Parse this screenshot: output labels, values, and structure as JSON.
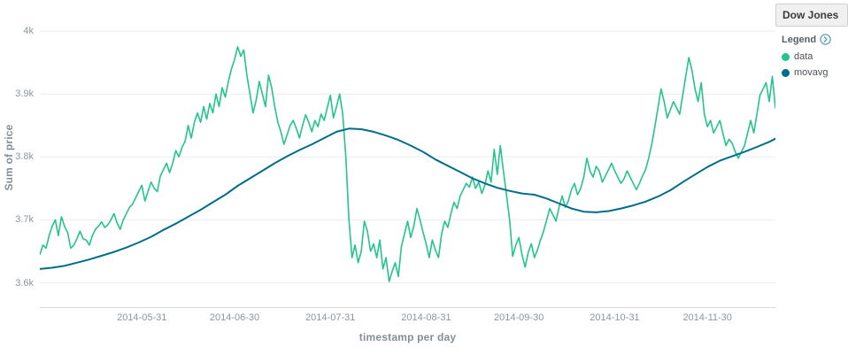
{
  "panel": {
    "title": "Dow Jones"
  },
  "legend": {
    "label": "Legend",
    "toggle_icon": "chevron-circle-right",
    "items": [
      {
        "label": "data",
        "color": "#23c48e"
      },
      {
        "label": "movavg",
        "color": "#006e8a"
      }
    ]
  },
  "chart_data": {
    "type": "line",
    "title": "Dow Jones",
    "xlabel": "timestamp per day",
    "ylabel": "Sum of price",
    "y_unit": "k (thousands)",
    "grid": "horizontal",
    "legend_position": "right",
    "x_origin_date": "2014-04-28",
    "xlim": [
      0,
      238
    ],
    "ylim": [
      3.56,
      4.01
    ],
    "x_ticks": [
      {
        "offset": 33,
        "label": "2014-05-31"
      },
      {
        "offset": 63,
        "label": "2014-06-30"
      },
      {
        "offset": 94,
        "label": "2014-07-31"
      },
      {
        "offset": 125,
        "label": "2014-08-31"
      },
      {
        "offset": 155,
        "label": "2014-09-30"
      },
      {
        "offset": 186,
        "label": "2014-10-31"
      },
      {
        "offset": 216,
        "label": "2014-11-30"
      }
    ],
    "y_ticks": [
      {
        "value": 3.6,
        "label": "3.6k"
      },
      {
        "value": 3.7,
        "label": "3.7k"
      },
      {
        "value": 3.8,
        "label": "3.8k"
      },
      {
        "value": 3.9,
        "label": "3.9k"
      },
      {
        "value": 4.0,
        "label": "4k"
      }
    ],
    "series": [
      {
        "name": "data",
        "color": "#23c48e",
        "points": [
          [
            0,
            3.645
          ],
          [
            1,
            3.66
          ],
          [
            2,
            3.655
          ],
          [
            3,
            3.675
          ],
          [
            4,
            3.69
          ],
          [
            5,
            3.7
          ],
          [
            6,
            3.675
          ],
          [
            7,
            3.705
          ],
          [
            8,
            3.69
          ],
          [
            9,
            3.68
          ],
          [
            10,
            3.655
          ],
          [
            11,
            3.66
          ],
          [
            12,
            3.67
          ],
          [
            13,
            3.682
          ],
          [
            14,
            3.67
          ],
          [
            15,
            3.668
          ],
          [
            16,
            3.66
          ],
          [
            17,
            3.675
          ],
          [
            18,
            3.685
          ],
          [
            19,
            3.69
          ],
          [
            20,
            3.697
          ],
          [
            21,
            3.688
          ],
          [
            22,
            3.692
          ],
          [
            23,
            3.7
          ],
          [
            24,
            3.71
          ],
          [
            25,
            3.695
          ],
          [
            26,
            3.685
          ],
          [
            27,
            3.7
          ],
          [
            28,
            3.71
          ],
          [
            29,
            3.72
          ],
          [
            30,
            3.725
          ],
          [
            31,
            3.735
          ],
          [
            32,
            3.745
          ],
          [
            33,
            3.755
          ],
          [
            34,
            3.73
          ],
          [
            35,
            3.745
          ],
          [
            36,
            3.76
          ],
          [
            37,
            3.75
          ],
          [
            38,
            3.745
          ],
          [
            39,
            3.77
          ],
          [
            40,
            3.78
          ],
          [
            41,
            3.79
          ],
          [
            42,
            3.775
          ],
          [
            43,
            3.79
          ],
          [
            44,
            3.81
          ],
          [
            45,
            3.8
          ],
          [
            46,
            3.815
          ],
          [
            47,
            3.825
          ],
          [
            48,
            3.85
          ],
          [
            49,
            3.83
          ],
          [
            50,
            3.855
          ],
          [
            51,
            3.87
          ],
          [
            52,
            3.855
          ],
          [
            53,
            3.88
          ],
          [
            54,
            3.86
          ],
          [
            55,
            3.885
          ],
          [
            56,
            3.87
          ],
          [
            57,
            3.9
          ],
          [
            58,
            3.88
          ],
          [
            59,
            3.91
          ],
          [
            60,
            3.895
          ],
          [
            61,
            3.92
          ],
          [
            62,
            3.94
          ],
          [
            63,
            3.955
          ],
          [
            64,
            3.975
          ],
          [
            65,
            3.96
          ],
          [
            66,
            3.97
          ],
          [
            67,
            3.93
          ],
          [
            68,
            3.9
          ],
          [
            69,
            3.87
          ],
          [
            70,
            3.89
          ],
          [
            71,
            3.92
          ],
          [
            72,
            3.9
          ],
          [
            73,
            3.88
          ],
          [
            74,
            3.93
          ],
          [
            75,
            3.91
          ],
          [
            76,
            3.88
          ],
          [
            77,
            3.855
          ],
          [
            78,
            3.84
          ],
          [
            79,
            3.82
          ],
          [
            80,
            3.835
          ],
          [
            81,
            3.85
          ],
          [
            82,
            3.858
          ],
          [
            83,
            3.845
          ],
          [
            84,
            3.83
          ],
          [
            85,
            3.85
          ],
          [
            86,
            3.867
          ],
          [
            87,
            3.855
          ],
          [
            88,
            3.84
          ],
          [
            89,
            3.858
          ],
          [
            90,
            3.848
          ],
          [
            91,
            3.868
          ],
          [
            92,
            3.858
          ],
          [
            93,
            3.878
          ],
          [
            94,
            3.898
          ],
          [
            95,
            3.862
          ],
          [
            96,
            3.88
          ],
          [
            97,
            3.9
          ],
          [
            98,
            3.868
          ],
          [
            99,
            3.8
          ],
          [
            100,
            3.7
          ],
          [
            101,
            3.64
          ],
          [
            102,
            3.66
          ],
          [
            103,
            3.632
          ],
          [
            104,
            3.65
          ],
          [
            105,
            3.698
          ],
          [
            106,
            3.682
          ],
          [
            107,
            3.65
          ],
          [
            108,
            3.662
          ],
          [
            109,
            3.64
          ],
          [
            110,
            3.668
          ],
          [
            111,
            3.622
          ],
          [
            112,
            3.64
          ],
          [
            113,
            3.602
          ],
          [
            114,
            3.618
          ],
          [
            115,
            3.632
          ],
          [
            116,
            3.61
          ],
          [
            117,
            3.658
          ],
          [
            118,
            3.678
          ],
          [
            119,
            3.698
          ],
          [
            120,
            3.672
          ],
          [
            121,
            3.69
          ],
          [
            122,
            3.718
          ],
          [
            123,
            3.7
          ],
          [
            124,
            3.68
          ],
          [
            125,
            3.662
          ],
          [
            126,
            3.64
          ],
          [
            127,
            3.668
          ],
          [
            128,
            3.652
          ],
          [
            129,
            3.64
          ],
          [
            130,
            3.678
          ],
          [
            131,
            3.698
          ],
          [
            132,
            3.688
          ],
          [
            133,
            3.71
          ],
          [
            134,
            3.728
          ],
          [
            135,
            3.718
          ],
          [
            136,
            3.738
          ],
          [
            137,
            3.748
          ],
          [
            138,
            3.758
          ],
          [
            139,
            3.752
          ],
          [
            140,
            3.768
          ],
          [
            141,
            3.75
          ],
          [
            142,
            3.76
          ],
          [
            143,
            3.742
          ],
          [
            144,
            3.755
          ],
          [
            145,
            3.778
          ],
          [
            146,
            3.76
          ],
          [
            147,
            3.812
          ],
          [
            148,
            3.772
          ],
          [
            149,
            3.818
          ],
          [
            150,
            3.778
          ],
          [
            151,
            3.74
          ],
          [
            152,
            3.7
          ],
          [
            153,
            3.642
          ],
          [
            154,
            3.66
          ],
          [
            155,
            3.672
          ],
          [
            156,
            3.645
          ],
          [
            157,
            3.625
          ],
          [
            158,
            3.648
          ],
          [
            159,
            3.662
          ],
          [
            160,
            3.64
          ],
          [
            161,
            3.652
          ],
          [
            162,
            3.668
          ],
          [
            163,
            3.682
          ],
          [
            164,
            3.7
          ],
          [
            165,
            3.718
          ],
          [
            166,
            3.708
          ],
          [
            167,
            3.698
          ],
          [
            168,
            3.72
          ],
          [
            169,
            3.738
          ],
          [
            170,
            3.72
          ],
          [
            171,
            3.73
          ],
          [
            172,
            3.748
          ],
          [
            173,
            3.758
          ],
          [
            174,
            3.74
          ],
          [
            175,
            3.75
          ],
          [
            176,
            3.768
          ],
          [
            177,
            3.798
          ],
          [
            178,
            3.778
          ],
          [
            179,
            3.768
          ],
          [
            180,
            3.785
          ],
          [
            181,
            3.778
          ],
          [
            182,
            3.76
          ],
          [
            183,
            3.77
          ],
          [
            184,
            3.78
          ],
          [
            185,
            3.79
          ],
          [
            186,
            3.778
          ],
          [
            187,
            3.768
          ],
          [
            188,
            3.758
          ],
          [
            189,
            3.765
          ],
          [
            190,
            3.778
          ],
          [
            191,
            3.768
          ],
          [
            192,
            3.758
          ],
          [
            193,
            3.748
          ],
          [
            194,
            3.758
          ],
          [
            195,
            3.77
          ],
          [
            196,
            3.78
          ],
          [
            197,
            3.798
          ],
          [
            198,
            3.82
          ],
          [
            199,
            3.848
          ],
          [
            200,
            3.878
          ],
          [
            201,
            3.908
          ],
          [
            202,
            3.888
          ],
          [
            203,
            3.862
          ],
          [
            204,
            3.875
          ],
          [
            205,
            3.888
          ],
          [
            206,
            3.878
          ],
          [
            207,
            3.868
          ],
          [
            208,
            3.898
          ],
          [
            209,
            3.928
          ],
          [
            210,
            3.958
          ],
          [
            211,
            3.938
          ],
          [
            212,
            3.908
          ],
          [
            213,
            3.888
          ],
          [
            214,
            3.918
          ],
          [
            215,
            3.868
          ],
          [
            216,
            3.848
          ],
          [
            217,
            3.858
          ],
          [
            218,
            3.838
          ],
          [
            219,
            3.848
          ],
          [
            220,
            3.858
          ],
          [
            221,
            3.838
          ],
          [
            222,
            3.818
          ],
          [
            223,
            3.828
          ],
          [
            224,
            3.822
          ],
          [
            225,
            3.808
          ],
          [
            226,
            3.798
          ],
          [
            227,
            3.808
          ],
          [
            228,
            3.818
          ],
          [
            229,
            3.838
          ],
          [
            230,
            3.858
          ],
          [
            231,
            3.838
          ],
          [
            232,
            3.868
          ],
          [
            233,
            3.898
          ],
          [
            234,
            3.908
          ],
          [
            235,
            3.918
          ],
          [
            236,
            3.888
          ],
          [
            237,
            3.928
          ],
          [
            238,
            3.878
          ]
        ]
      },
      {
        "name": "movavg",
        "color": "#006e8a",
        "points": [
          [
            0,
            3.622
          ],
          [
            4,
            3.624
          ],
          [
            8,
            3.627
          ],
          [
            12,
            3.632
          ],
          [
            16,
            3.637
          ],
          [
            20,
            3.643
          ],
          [
            24,
            3.649
          ],
          [
            28,
            3.656
          ],
          [
            32,
            3.664
          ],
          [
            36,
            3.673
          ],
          [
            40,
            3.684
          ],
          [
            44,
            3.694
          ],
          [
            48,
            3.705
          ],
          [
            52,
            3.716
          ],
          [
            56,
            3.728
          ],
          [
            60,
            3.74
          ],
          [
            64,
            3.754
          ],
          [
            68,
            3.766
          ],
          [
            72,
            3.778
          ],
          [
            76,
            3.79
          ],
          [
            80,
            3.801
          ],
          [
            84,
            3.811
          ],
          [
            88,
            3.82
          ],
          [
            92,
            3.83
          ],
          [
            96,
            3.84
          ],
          [
            100,
            3.845
          ],
          [
            104,
            3.844
          ],
          [
            108,
            3.84
          ],
          [
            112,
            3.834
          ],
          [
            116,
            3.827
          ],
          [
            120,
            3.818
          ],
          [
            124,
            3.808
          ],
          [
            128,
            3.796
          ],
          [
            132,
            3.786
          ],
          [
            136,
            3.776
          ],
          [
            140,
            3.766
          ],
          [
            144,
            3.758
          ],
          [
            148,
            3.751
          ],
          [
            152,
            3.746
          ],
          [
            156,
            3.742
          ],
          [
            160,
            3.74
          ],
          [
            164,
            3.734
          ],
          [
            168,
            3.726
          ],
          [
            172,
            3.718
          ],
          [
            176,
            3.713
          ],
          [
            180,
            3.712
          ],
          [
            184,
            3.714
          ],
          [
            188,
            3.718
          ],
          [
            192,
            3.723
          ],
          [
            196,
            3.729
          ],
          [
            200,
            3.737
          ],
          [
            204,
            3.747
          ],
          [
            208,
            3.76
          ],
          [
            212,
            3.772
          ],
          [
            216,
            3.784
          ],
          [
            220,
            3.794
          ],
          [
            224,
            3.801
          ],
          [
            228,
            3.808
          ],
          [
            232,
            3.816
          ],
          [
            236,
            3.824
          ],
          [
            238,
            3.829
          ]
        ]
      }
    ]
  }
}
